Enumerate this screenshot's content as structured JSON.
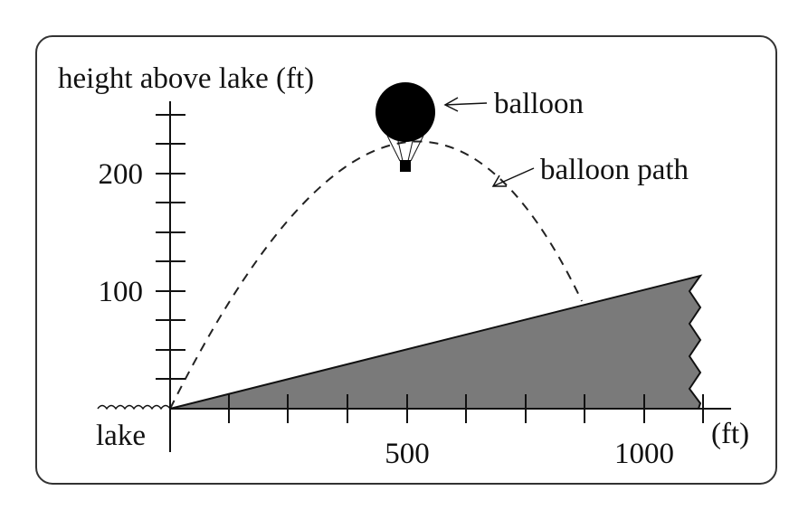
{
  "axes": {
    "y_label": "height above lake (ft)",
    "x_unit": "(ft)",
    "yticks": [
      100,
      200
    ],
    "xticks": [
      500,
      1000
    ]
  },
  "labels": {
    "balloon": "balloon",
    "balloon_path": "balloon path",
    "lake": "lake"
  }
}
